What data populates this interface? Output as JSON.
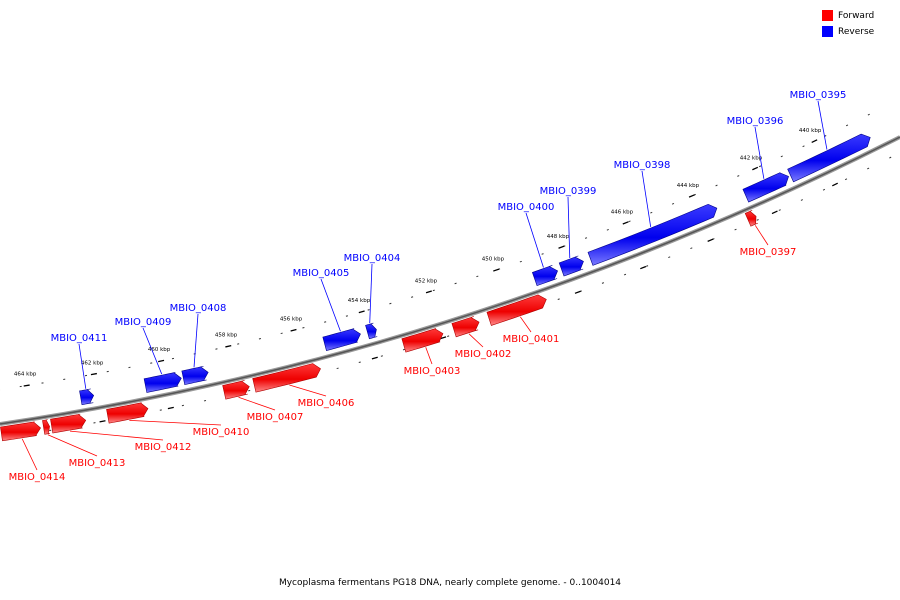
{
  "legend": {
    "forward": {
      "label": "Forward",
      "color": "#ff0000"
    },
    "reverse": {
      "label": "Reverse",
      "color": "#0000ff"
    }
  },
  "footer": "Mycoplasma fermentans PG18 DNA, nearly complete genome. - 0..1004014",
  "scale_labels": [
    "440 kbp",
    "442 kbp",
    "444 kbp",
    "446 kbp",
    "448 kbp",
    "450 kbp",
    "452 kbp",
    "454 kbp",
    "456 kbp",
    "458 kbp",
    "460 kbp",
    "462 kbp",
    "464 kbp"
  ],
  "genes": [
    {
      "id": "MBIO_0395",
      "strand": "reverse"
    },
    {
      "id": "MBIO_0396",
      "strand": "reverse"
    },
    {
      "id": "MBIO_0397",
      "strand": "forward"
    },
    {
      "id": "MBIO_0398",
      "strand": "reverse"
    },
    {
      "id": "MBIO_0399",
      "strand": "reverse"
    },
    {
      "id": "MBIO_0400",
      "strand": "reverse"
    },
    {
      "id": "MBIO_0401",
      "strand": "forward"
    },
    {
      "id": "MBIO_0402",
      "strand": "forward"
    },
    {
      "id": "MBIO_0403",
      "strand": "forward"
    },
    {
      "id": "MBIO_0404",
      "strand": "reverse"
    },
    {
      "id": "MBIO_0405",
      "strand": "reverse"
    },
    {
      "id": "MBIO_0406",
      "strand": "forward"
    },
    {
      "id": "MBIO_0407",
      "strand": "forward"
    },
    {
      "id": "MBIO_0408",
      "strand": "reverse"
    },
    {
      "id": "MBIO_0409",
      "strand": "reverse"
    },
    {
      "id": "MBIO_0410",
      "strand": "forward"
    },
    {
      "id": "MBIO_0411",
      "strand": "reverse"
    },
    {
      "id": "MBIO_0412",
      "strand": "forward"
    },
    {
      "id": "MBIO_0413",
      "strand": "forward"
    },
    {
      "id": "MBIO_0414",
      "strand": "forward"
    }
  ]
}
